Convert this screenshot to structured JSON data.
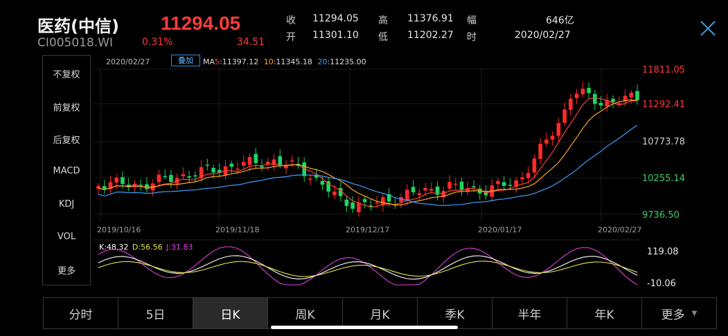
{
  "header": {
    "name": "医药(中信)",
    "code": "CI005018.WI",
    "price": "11294.05",
    "change_pct": "0.31%",
    "change": "34.51",
    "stats": [
      {
        "label": "收",
        "value": "11294.05"
      },
      {
        "label": "高",
        "value": "11376.91"
      },
      {
        "label": "幅",
        "value": "646亿"
      },
      {
        "label": "开",
        "value": "11301.10"
      },
      {
        "label": "低",
        "value": "11202.27"
      },
      {
        "label": "时",
        "value": "2020/02/27"
      }
    ]
  },
  "sidebar": {
    "items": [
      {
        "label": "不复权",
        "active": true
      },
      {
        "label": "前复权",
        "active": false
      },
      {
        "label": "后复权",
        "active": false
      },
      {
        "label": "MACD",
        "active": false
      },
      {
        "label": "KDJ",
        "active": true
      },
      {
        "label": "VOL",
        "active": false
      },
      {
        "label": "更多",
        "active": false
      }
    ]
  },
  "chart": {
    "date": "2020/02/27",
    "overlay_label": "叠加",
    "ma": {
      "prefix": "MA",
      "items": [
        {
          "period": "5",
          "value": ":11397.12",
          "color": "#ff4040"
        },
        {
          "period": "10",
          "value": ":11345.18",
          "color": "#ffa726"
        },
        {
          "period": "20",
          "value": ":11235.00",
          "color": "#3ba0ff"
        }
      ]
    },
    "y_labels": [
      {
        "text": "11811.05",
        "color": "#ff3b3b"
      },
      {
        "text": "11292.41",
        "color": "#ff3b3b"
      },
      {
        "text": "10773.78",
        "color": "#cfcfcf"
      },
      {
        "text": "10255.14",
        "color": "#3ecf6a"
      },
      {
        "text": "9736.50",
        "color": "#3ecf6a"
      }
    ],
    "x_labels": [
      "2019/10/16",
      "2019/11/18",
      "2019/12/17",
      "2020/01/17",
      "2020/02/27"
    ],
    "kdj": {
      "k_label": "K:48.32",
      "d_label": "D:56.56",
      "j_label": "J:31.83",
      "top_label": "119.08",
      "bottom_label": "-10.06"
    },
    "colors": {
      "up": "#ff2a2a",
      "down": "#1ed760",
      "k": "#ffffff",
      "d": "#e6e64a",
      "j": "#e040e0"
    }
  },
  "tabs": [
    {
      "label": "分时",
      "active": false
    },
    {
      "label": "5日",
      "active": false
    },
    {
      "label": "日K",
      "active": true
    },
    {
      "label": "周K",
      "active": false
    },
    {
      "label": "月K",
      "active": false
    },
    {
      "label": "季K",
      "active": false
    },
    {
      "label": "半年",
      "active": false
    },
    {
      "label": "年K",
      "active": false
    },
    {
      "label": "更多",
      "active": false,
      "caret": true
    }
  ]
}
